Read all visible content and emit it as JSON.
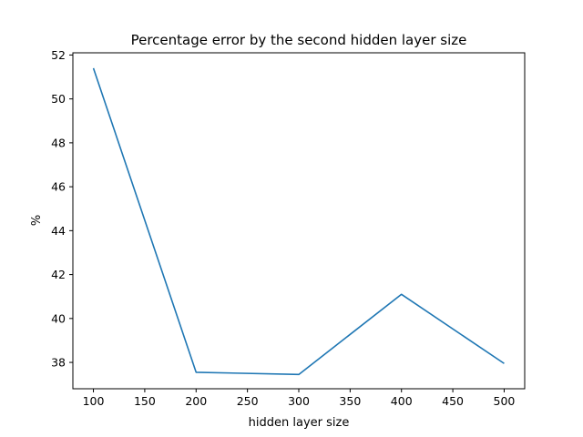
{
  "chart_data": {
    "type": "line",
    "title": "Percentage error by the second hidden layer size",
    "xlabel": "hidden layer size",
    "ylabel": "%",
    "x": [
      100,
      200,
      300,
      400,
      500
    ],
    "series": [
      {
        "values": [
          51.4,
          37.55,
          37.45,
          41.1,
          37.95
        ],
        "color": "#1f77b4"
      }
    ],
    "xlim": [
      80,
      520
    ],
    "ylim": [
      36.8,
      52.1
    ],
    "xticks": [
      100,
      150,
      200,
      250,
      300,
      350,
      400,
      450,
      500
    ],
    "yticks": [
      38,
      40,
      42,
      44,
      46,
      48,
      50,
      52
    ],
    "grid": false
  }
}
